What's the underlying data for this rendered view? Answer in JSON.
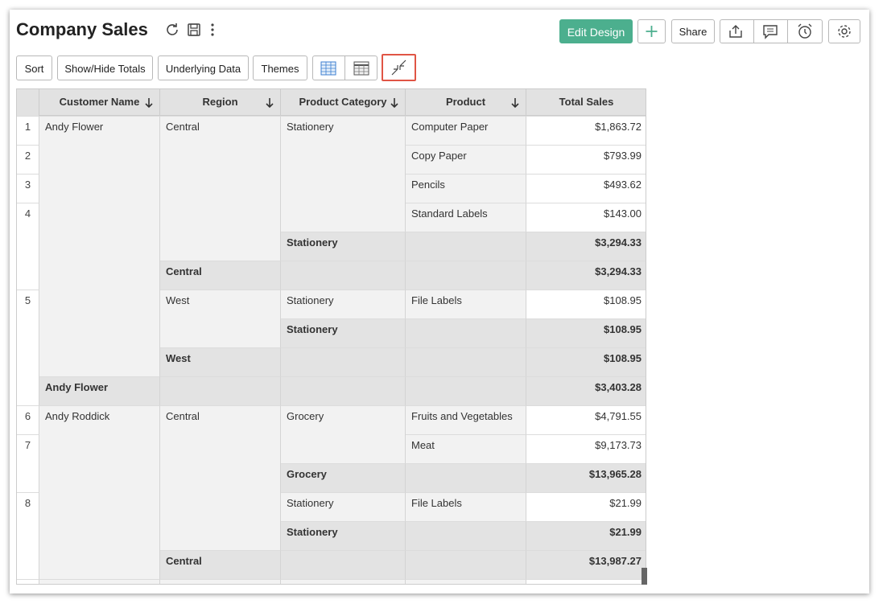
{
  "header": {
    "title": "Company Sales",
    "buttons": [
      "Edit Design",
      "Share"
    ]
  },
  "toolbar": [
    "Sort",
    "Show/Hide Totals",
    "Underlying Data",
    "Themes"
  ],
  "table": {
    "columns": [
      "Customer Name",
      "Region",
      "Product Category",
      "Product",
      "Total Sales"
    ],
    "rows": [
      [
        "1",
        "Andy Flower",
        "Central",
        "Stationery",
        "Computer Paper",
        "$1,863.72"
      ],
      [
        "2",
        null,
        null,
        null,
        "Copy Paper",
        "$793.99"
      ],
      [
        "3",
        null,
        null,
        null,
        "Pencils",
        "$493.62"
      ],
      [
        "4",
        null,
        null,
        null,
        "Standard Labels",
        "$143.00"
      ],
      [
        null,
        null,
        null,
        "Stationery",
        null,
        "$3,294.33"
      ],
      [
        null,
        null,
        "Central",
        null,
        null,
        "$3,294.33"
      ],
      [
        "5",
        null,
        "West",
        "Stationery",
        "File Labels",
        "$108.95"
      ],
      [
        null,
        null,
        null,
        "Stationery",
        null,
        "$108.95"
      ],
      [
        null,
        null,
        "West",
        null,
        null,
        "$108.95"
      ],
      [
        null,
        "Andy Flower",
        null,
        null,
        null,
        "$3,403.28"
      ],
      [
        "6",
        "Andy Roddick",
        "Central",
        "Grocery",
        "Fruits and Vegetables",
        "$4,791.55"
      ],
      [
        "7",
        null,
        null,
        null,
        "Meat",
        "$9,173.73"
      ],
      [
        null,
        null,
        null,
        "Grocery",
        null,
        "$13,965.28"
      ],
      [
        "8",
        null,
        null,
        "Stationery",
        "File Labels",
        "$21.99"
      ],
      [
        null,
        null,
        null,
        "Stationery",
        null,
        "$21.99"
      ],
      [
        null,
        null,
        "Central",
        null,
        null,
        "$13,987.27"
      ]
    ]
  }
}
